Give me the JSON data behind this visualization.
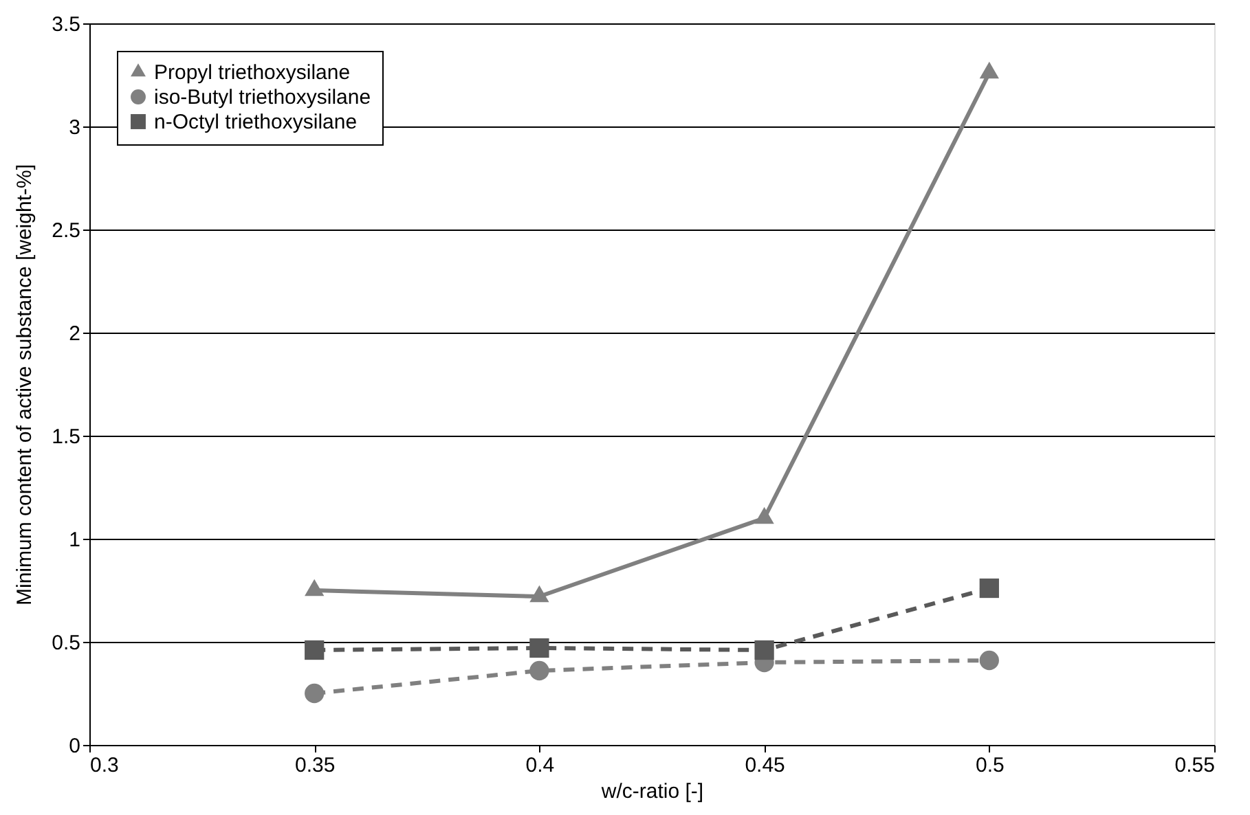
{
  "chart_data": {
    "type": "line",
    "xlabel": "w/c-ratio [-]",
    "ylabel": "Minimum content of active substance [weight-%]",
    "x": [
      0.35,
      0.4,
      0.45,
      0.5
    ],
    "series": [
      {
        "name": "Propyl triethoxysilane",
        "color": "#808080",
        "values": [
          0.75,
          0.72,
          1.1,
          3.26
        ],
        "marker": "triangle",
        "line_style": "solid"
      },
      {
        "name": "iso-Butyl triethoxysilane",
        "color": "#808080",
        "values": [
          0.25,
          0.36,
          0.4,
          0.41
        ],
        "marker": "circle",
        "line_style": "dashed"
      },
      {
        "name": "n-Octyl triethoxysilane",
        "color": "#595959",
        "values": [
          0.46,
          0.47,
          0.46,
          0.76
        ],
        "marker": "square",
        "line_style": "dashed"
      }
    ],
    "xlim": [
      0.3,
      0.55
    ],
    "xticks": [
      0.3,
      0.35,
      0.4,
      0.45,
      0.5,
      0.55
    ],
    "ylim": [
      0,
      3.5
    ],
    "yticks": [
      0,
      0.5,
      1,
      1.5,
      2,
      2.5,
      3,
      3.5
    ],
    "grid": "y",
    "legend": "top left"
  }
}
